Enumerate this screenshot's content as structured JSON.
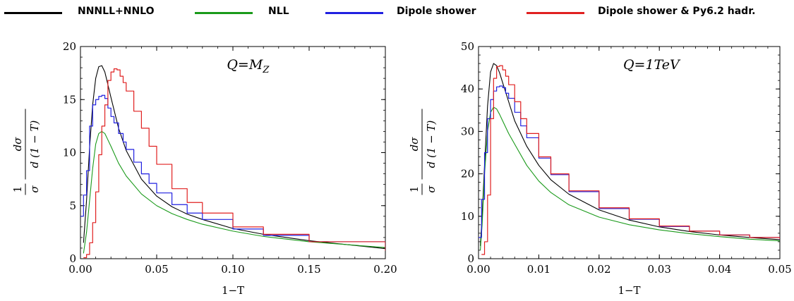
{
  "legend": {
    "items": [
      {
        "label": "NNNLL+NNLO",
        "color": "#000000"
      },
      {
        "label": "NLL",
        "color": "#1a9a1a"
      },
      {
        "label": "Dipole shower",
        "color": "#2020e0"
      },
      {
        "label": "Dipole shower & Py6.2 hadr.",
        "color": "#e02020"
      }
    ]
  },
  "chart_data": [
    {
      "type": "line",
      "annotation_base": "Q=M",
      "annotation_sub": "Z",
      "xlabel": "1−T",
      "ylabel_num": "1",
      "ylabel_den": "σ",
      "ylabel_dnum": "dσ",
      "ylabel_dden": "d (1 − T)",
      "xlim": [
        0,
        0.2
      ],
      "ylim": [
        0,
        20
      ],
      "xticks": [
        "0.00",
        "0.05",
        "0.10",
        "0.15",
        "0.20"
      ],
      "xtick_values": [
        0,
        0.05,
        0.1,
        0.15,
        0.2
      ],
      "yticks": [
        "0",
        "5",
        "10",
        "15",
        "20"
      ],
      "ytick_values": [
        0,
        5,
        10,
        15,
        20
      ],
      "series": [
        {
          "name": "NNNLL+NNLO",
          "color": "#000000",
          "step": false,
          "x": [
            0.002,
            0.004,
            0.006,
            0.008,
            0.01,
            0.012,
            0.014,
            0.016,
            0.018,
            0.02,
            0.025,
            0.03,
            0.04,
            0.05,
            0.06,
            0.07,
            0.08,
            0.1,
            0.12,
            0.15,
            0.2
          ],
          "y": [
            1.5,
            5.5,
            10.5,
            14.5,
            17.0,
            18.1,
            18.2,
            17.6,
            16.4,
            15.2,
            12.3,
            10.2,
            7.5,
            5.9,
            4.9,
            4.2,
            3.7,
            2.85,
            2.3,
            1.7,
            0.95
          ]
        },
        {
          "name": "NLL",
          "color": "#1a9a1a",
          "step": false,
          "x": [
            0.002,
            0.004,
            0.006,
            0.008,
            0.01,
            0.012,
            0.014,
            0.016,
            0.018,
            0.02,
            0.025,
            0.03,
            0.04,
            0.05,
            0.06,
            0.07,
            0.08,
            0.1,
            0.12,
            0.15,
            0.2
          ],
          "y": [
            0.5,
            2.5,
            5.5,
            8.5,
            10.8,
            11.8,
            12.0,
            11.8,
            11.2,
            10.6,
            9.0,
            7.8,
            6.1,
            5.0,
            4.25,
            3.7,
            3.25,
            2.6,
            2.1,
            1.6,
            1.05
          ]
        },
        {
          "name": "Dipole shower",
          "color": "#2020e0",
          "step": true,
          "x": [
            0.0,
            0.002,
            0.004,
            0.006,
            0.008,
            0.01,
            0.012,
            0.014,
            0.016,
            0.018,
            0.02,
            0.022,
            0.025,
            0.028,
            0.03,
            0.035,
            0.04,
            0.045,
            0.05,
            0.06,
            0.07,
            0.08,
            0.1,
            0.12,
            0.15,
            0.2
          ],
          "y": [
            4.0,
            6.0,
            8.3,
            12.5,
            14.5,
            15.0,
            15.3,
            15.4,
            15.1,
            14.2,
            13.4,
            12.8,
            11.8,
            11.0,
            10.3,
            9.1,
            8.0,
            7.1,
            6.2,
            5.1,
            4.3,
            3.7,
            2.8,
            2.2,
            1.6,
            0.8
          ]
        },
        {
          "name": "Dipole shower & Py6.2 hadr.",
          "color": "#e02020",
          "step": true,
          "x": [
            0.002,
            0.004,
            0.006,
            0.008,
            0.01,
            0.012,
            0.014,
            0.016,
            0.018,
            0.02,
            0.022,
            0.024,
            0.026,
            0.028,
            0.03,
            0.035,
            0.04,
            0.045,
            0.05,
            0.06,
            0.07,
            0.08,
            0.1,
            0.12,
            0.15,
            0.2
          ],
          "y": [
            0.1,
            0.4,
            1.5,
            3.4,
            6.3,
            9.8,
            12.5,
            14.5,
            16.8,
            17.6,
            17.9,
            17.8,
            17.2,
            16.6,
            15.8,
            13.9,
            12.3,
            10.6,
            8.9,
            6.6,
            5.3,
            4.3,
            3.0,
            2.3,
            1.6,
            0.75
          ]
        }
      ]
    },
    {
      "type": "line",
      "annotation_base": "Q=1TeV",
      "annotation_sub": "",
      "xlabel": "1−T",
      "ylabel_num": "1",
      "ylabel_den": "σ",
      "ylabel_dnum": "dσ",
      "ylabel_dden": "d (1 − T)",
      "xlim": [
        0,
        0.05
      ],
      "ylim": [
        0,
        50
      ],
      "xticks": [
        "0.00",
        "0.01",
        "0.02",
        "0.03",
        "0.04",
        "0.05"
      ],
      "xtick_values": [
        0,
        0.01,
        0.02,
        0.03,
        0.04,
        0.05
      ],
      "yticks": [
        "0",
        "10",
        "20",
        "30",
        "40",
        "50"
      ],
      "ytick_values": [
        0,
        10,
        20,
        30,
        40,
        50
      ],
      "series": [
        {
          "name": "NNNLL+NNLO",
          "color": "#000000",
          "step": false,
          "x": [
            0.0003,
            0.0006,
            0.001,
            0.0015,
            0.002,
            0.0025,
            0.003,
            0.0035,
            0.004,
            0.005,
            0.006,
            0.008,
            0.01,
            0.012,
            0.015,
            0.02,
            0.025,
            0.03,
            0.035,
            0.04,
            0.045,
            0.05
          ],
          "y": [
            3.0,
            10.0,
            22.0,
            36.0,
            44.0,
            46.0,
            45.5,
            43.8,
            41.5,
            37.0,
            32.5,
            26.5,
            22.0,
            18.6,
            15.2,
            11.5,
            9.1,
            7.5,
            6.4,
            5.6,
            5.0,
            4.5
          ]
        },
        {
          "name": "NLL",
          "color": "#1a9a1a",
          "step": false,
          "x": [
            0.0003,
            0.0006,
            0.001,
            0.0015,
            0.002,
            0.0025,
            0.003,
            0.0035,
            0.004,
            0.005,
            0.006,
            0.008,
            0.01,
            0.012,
            0.015,
            0.02,
            0.025,
            0.03,
            0.035,
            0.04,
            0.045,
            0.05
          ],
          "y": [
            2.0,
            8.0,
            20.0,
            30.0,
            34.5,
            35.7,
            35.3,
            34.0,
            32.5,
            29.5,
            27.0,
            22.0,
            18.3,
            15.6,
            12.7,
            9.8,
            8.0,
            6.8,
            5.9,
            5.2,
            4.6,
            4.2
          ]
        },
        {
          "name": "Dipole shower",
          "color": "#2020e0",
          "step": true,
          "x": [
            0.0,
            0.0005,
            0.001,
            0.0015,
            0.002,
            0.0025,
            0.003,
            0.0035,
            0.004,
            0.0045,
            0.005,
            0.006,
            0.007,
            0.008,
            0.01,
            0.012,
            0.015,
            0.02,
            0.025,
            0.03,
            0.035,
            0.04,
            0.045,
            0.05
          ],
          "y": [
            5.0,
            14.0,
            25.0,
            33.0,
            37.5,
            39.5,
            40.5,
            40.7,
            40.3,
            39.0,
            37.8,
            34.5,
            31.3,
            28.5,
            23.7,
            19.8,
            15.8,
            11.8,
            9.3,
            7.6,
            6.5,
            5.6,
            5.0,
            4.5
          ]
        },
        {
          "name": "Dipole shower & Py6.2 hadr.",
          "color": "#e02020",
          "step": true,
          "x": [
            0.0005,
            0.001,
            0.0015,
            0.002,
            0.0025,
            0.003,
            0.0035,
            0.004,
            0.0045,
            0.005,
            0.006,
            0.007,
            0.008,
            0.01,
            0.012,
            0.015,
            0.02,
            0.025,
            0.03,
            0.035,
            0.04,
            0.045,
            0.05
          ],
          "y": [
            1.0,
            4.0,
            15.0,
            33.0,
            42.5,
            45.3,
            45.5,
            44.5,
            43.0,
            41.0,
            37.0,
            33.0,
            29.5,
            24.0,
            20.0,
            16.0,
            12.0,
            9.4,
            7.7,
            6.5,
            5.6,
            5.0,
            4.6
          ]
        }
      ]
    }
  ]
}
